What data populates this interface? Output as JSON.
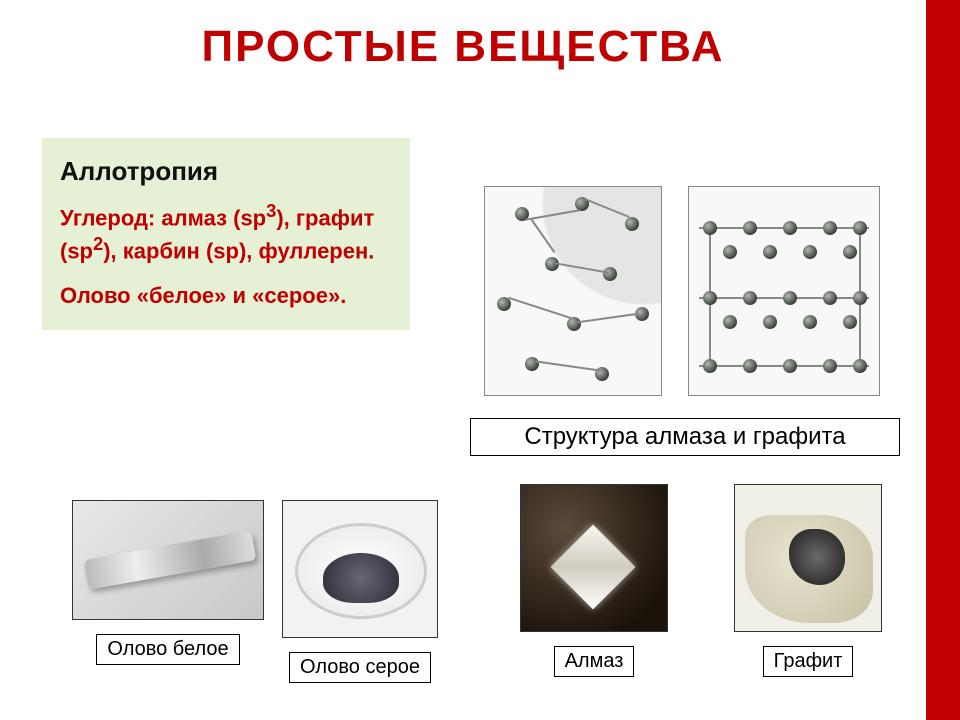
{
  "title": "ПРОСТЫЕ ВЕЩЕСТВА",
  "colors": {
    "accent": "#c00000",
    "infobox_bg": "#e6f0d4",
    "page_bg": "#ffffff"
  },
  "infobox": {
    "heading": "Аллотропия",
    "line1_html": "Углерод: алмаз (sp<sup>3</sup>), графит (sp<sup>2</sup>), карбин (sp), фуллерен.",
    "line1_plain": "Углерод: алмаз (sp3), графит (sp2), карбин (sp), фуллерен.",
    "line2": "Олово «белое» и «серое»."
  },
  "structure_label": "Структура алмаза и графита",
  "thumbnails": [
    {
      "id": "tin-white",
      "caption": "Олово белое"
    },
    {
      "id": "tin-grey",
      "caption": "Олово серое"
    },
    {
      "id": "diamond",
      "caption": "Алмаз"
    },
    {
      "id": "graphite",
      "caption": "Графит"
    }
  ],
  "fonts": {
    "title_size_pt": 33,
    "heading_size_pt": 20,
    "body_size_pt": 17,
    "caption_size_pt": 15
  }
}
